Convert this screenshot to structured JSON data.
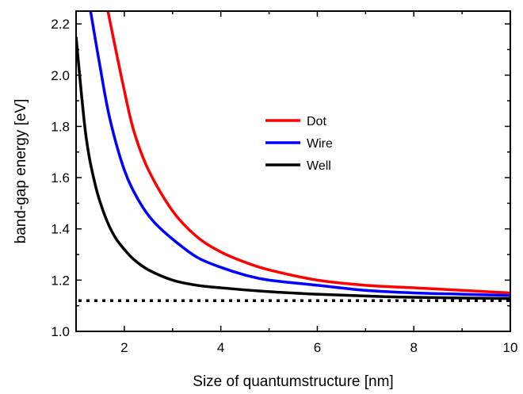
{
  "chart_data": {
    "type": "line",
    "title": "",
    "xlabel": "Size of quantumstructure [nm]",
    "ylabel": "band-gap energy [eV]",
    "xlim": [
      1,
      10
    ],
    "ylim": [
      1.0,
      2.25
    ],
    "x_ticks": [
      2,
      4,
      6,
      8,
      10
    ],
    "y_ticks": [
      1.0,
      1.2,
      1.4,
      1.6,
      1.8,
      2.0,
      2.2
    ],
    "x_tick_labels": [
      "2",
      "4",
      "6",
      "8",
      "10"
    ],
    "y_tick_labels": [
      "1.0",
      "1.2",
      "1.4",
      "1.6",
      "1.8",
      "2.0",
      "2.2"
    ],
    "legend_position": "center",
    "baseline": {
      "value": 1.12,
      "style": "dotted",
      "color": "#000000"
    },
    "series": [
      {
        "name": "Dot",
        "color": "#ff0000",
        "x": [
          1.66,
          1.8,
          2.0,
          2.2,
          2.5,
          3.0,
          3.5,
          4.0,
          4.5,
          5.0,
          6.0,
          7.0,
          8.0,
          9.0,
          10.0
        ],
        "y": [
          2.25,
          2.12,
          1.94,
          1.78,
          1.63,
          1.47,
          1.37,
          1.31,
          1.27,
          1.24,
          1.2,
          1.18,
          1.17,
          1.16,
          1.15
        ]
      },
      {
        "name": "Wire",
        "color": "#0000ff",
        "x": [
          1.3,
          1.5,
          1.7,
          2.0,
          2.3,
          2.6,
          3.0,
          3.5,
          4.0,
          4.5,
          5.0,
          6.0,
          7.0,
          8.0,
          9.0,
          10.0
        ],
        "y": [
          2.25,
          2.03,
          1.83,
          1.63,
          1.51,
          1.43,
          1.36,
          1.29,
          1.25,
          1.22,
          1.2,
          1.18,
          1.16,
          1.15,
          1.145,
          1.14
        ]
      },
      {
        "name": "Well",
        "color": "#000000",
        "x": [
          1.0,
          1.2,
          1.4,
          1.6,
          1.8,
          2.0,
          2.2,
          2.5,
          3.0,
          3.5,
          4.0,
          5.0,
          6.0,
          7.0,
          8.0,
          10.0
        ],
        "y": [
          2.15,
          1.77,
          1.57,
          1.45,
          1.37,
          1.32,
          1.28,
          1.24,
          1.2,
          1.18,
          1.17,
          1.155,
          1.145,
          1.138,
          1.133,
          1.128
        ]
      }
    ]
  }
}
